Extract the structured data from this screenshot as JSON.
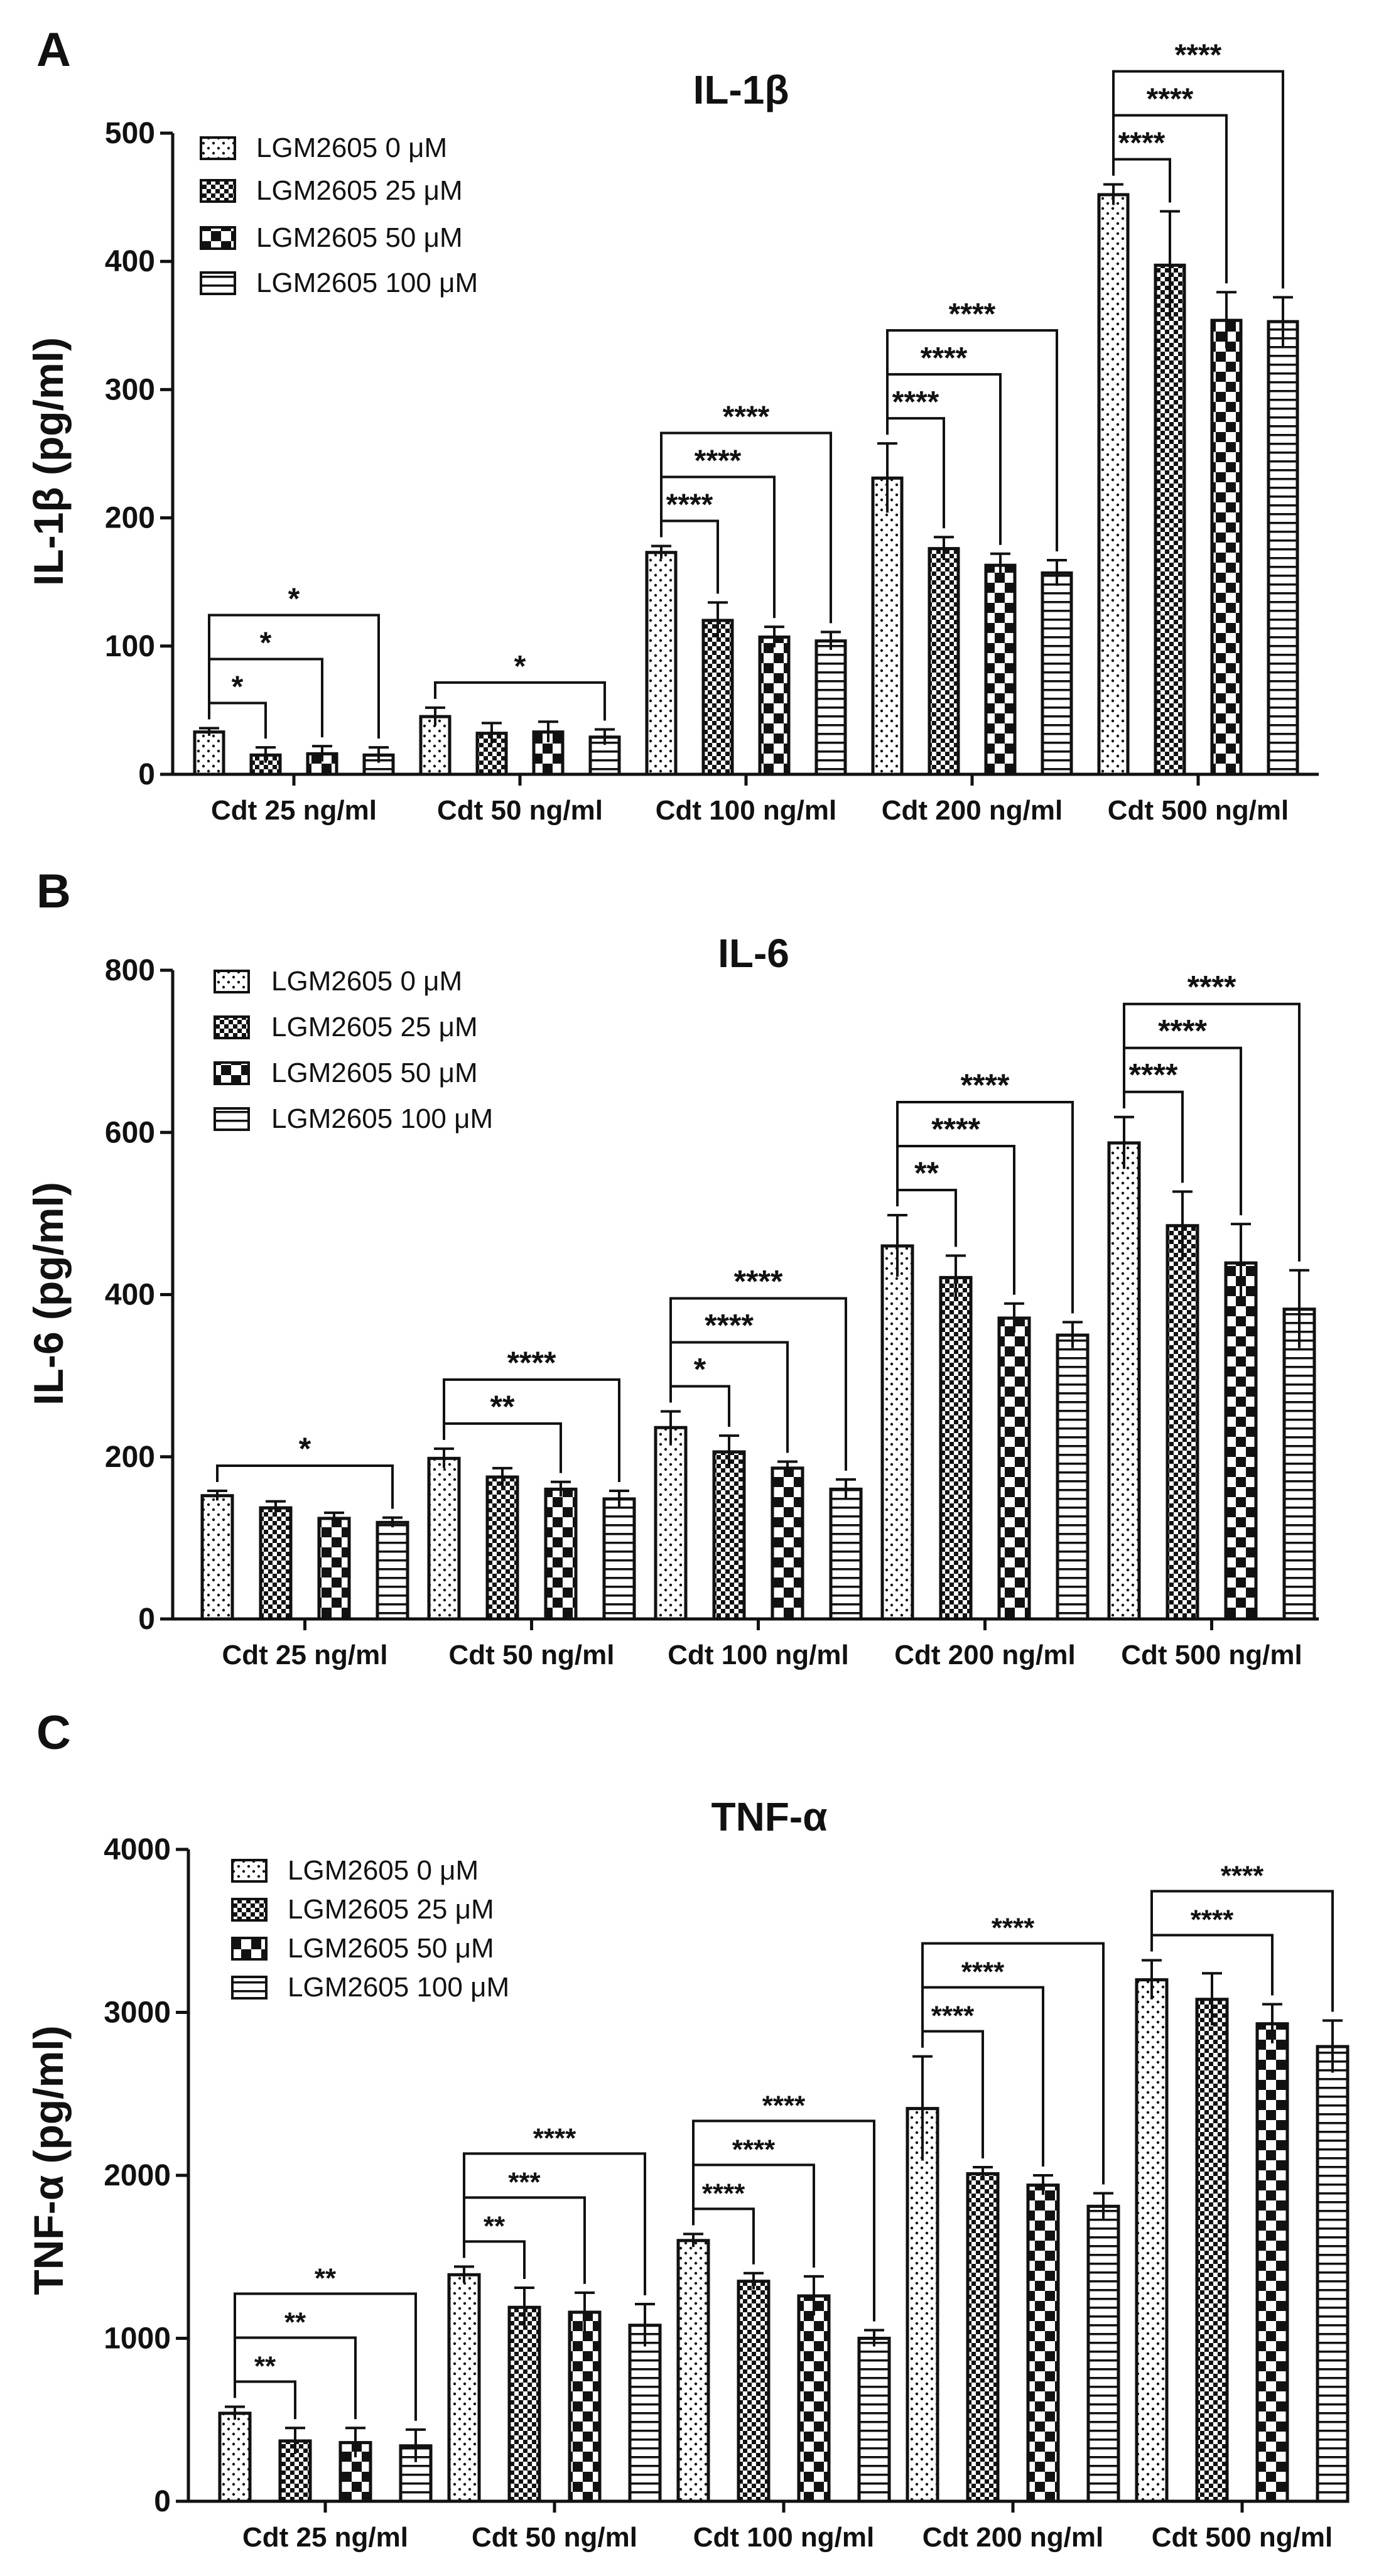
{
  "colors": {
    "ink": "#111111",
    "bar_fill": "#ffffff",
    "background": "#ffffff"
  },
  "legend_patterns": [
    "dots-pattern",
    "checker-pattern",
    "block-checker-pattern",
    "stripes-pattern"
  ],
  "chart_data": [
    {
      "panel": "A",
      "type": "bar",
      "title": "IL-1β",
      "xlabel": "",
      "ylabel": "IL-1β (pg/ml)",
      "ylim": [
        0,
        500
      ],
      "yticks": [
        0,
        100,
        200,
        300,
        400,
        500
      ],
      "grid": false,
      "legend": "top-left",
      "categories": [
        "Cdt 25 ng/ml",
        "Cdt 50 ng/ml",
        "Cdt 100 ng/ml",
        "Cdt 200 ng/ml",
        "Cdt 500 ng/ml"
      ],
      "series": [
        {
          "name": "LGM2605 0 μM",
          "values": [
            33,
            45,
            173,
            231,
            452
          ],
          "errors": [
            3,
            7,
            5,
            27,
            8
          ]
        },
        {
          "name": "LGM2605 25 μM",
          "values": [
            15,
            32,
            120,
            176,
            397
          ],
          "errors": [
            6,
            8,
            14,
            9,
            42
          ]
        },
        {
          "name": "LGM2605 50 μM",
          "values": [
            16,
            33,
            107,
            163,
            354
          ],
          "errors": [
            6,
            8,
            8,
            9,
            22
          ]
        },
        {
          "name": "LGM2605 100 μM",
          "values": [
            15,
            29,
            104,
            157,
            353
          ],
          "errors": [
            6,
            6,
            7,
            10,
            19
          ]
        }
      ],
      "annotations": [
        {
          "group": 0,
          "target": 1,
          "label": "*"
        },
        {
          "group": 0,
          "target": 2,
          "label": "*"
        },
        {
          "group": 0,
          "target": 3,
          "label": "*"
        },
        {
          "group": 1,
          "target": 3,
          "label": "*"
        },
        {
          "group": 2,
          "target": 1,
          "label": "****"
        },
        {
          "group": 2,
          "target": 2,
          "label": "****"
        },
        {
          "group": 2,
          "target": 3,
          "label": "****"
        },
        {
          "group": 3,
          "target": 1,
          "label": "****"
        },
        {
          "group": 3,
          "target": 2,
          "label": "****"
        },
        {
          "group": 3,
          "target": 3,
          "label": "****"
        },
        {
          "group": 4,
          "target": 1,
          "label": "****"
        },
        {
          "group": 4,
          "target": 2,
          "label": "****"
        },
        {
          "group": 4,
          "target": 3,
          "label": "****"
        }
      ]
    },
    {
      "panel": "B",
      "type": "bar",
      "title": "IL-6",
      "xlabel": "",
      "ylabel": "IL-6 (pg/ml)",
      "ylim": [
        0,
        800
      ],
      "yticks": [
        0,
        200,
        400,
        600,
        800
      ],
      "grid": false,
      "legend": "top-left",
      "categories": [
        "Cdt 25 ng/ml",
        "Cdt 50 ng/ml",
        "Cdt 100 ng/ml",
        "Cdt 200 ng/ml",
        "Cdt 500 ng/ml"
      ],
      "series": [
        {
          "name": "LGM2605 0 μM",
          "values": [
            152,
            198,
            236,
            460,
            587
          ],
          "errors": [
            6,
            12,
            20,
            38,
            32
          ]
        },
        {
          "name": "LGM2605 25 μM",
          "values": [
            137,
            175,
            206,
            421,
            485
          ],
          "errors": [
            8,
            11,
            20,
            27,
            42
          ]
        },
        {
          "name": "LGM2605 50 μM",
          "values": [
            124,
            160,
            186,
            371,
            439
          ],
          "errors": [
            7,
            9,
            8,
            18,
            48
          ]
        },
        {
          "name": "LGM2605 100 μM",
          "values": [
            119,
            148,
            160,
            350,
            382
          ],
          "errors": [
            6,
            10,
            12,
            16,
            48
          ]
        }
      ],
      "annotations": [
        {
          "group": 0,
          "target": 3,
          "label": "*"
        },
        {
          "group": 1,
          "target": 2,
          "label": "**"
        },
        {
          "group": 1,
          "target": 3,
          "label": "****"
        },
        {
          "group": 2,
          "target": 1,
          "label": "*"
        },
        {
          "group": 2,
          "target": 2,
          "label": "****"
        },
        {
          "group": 2,
          "target": 3,
          "label": "****"
        },
        {
          "group": 3,
          "target": 1,
          "label": "**"
        },
        {
          "group": 3,
          "target": 2,
          "label": "****"
        },
        {
          "group": 3,
          "target": 3,
          "label": "****"
        },
        {
          "group": 4,
          "target": 1,
          "label": "****"
        },
        {
          "group": 4,
          "target": 2,
          "label": "****"
        },
        {
          "group": 4,
          "target": 3,
          "label": "****"
        }
      ]
    },
    {
      "panel": "C",
      "type": "bar",
      "title": "TNF-α",
      "xlabel": "",
      "ylabel": "TNF-α (pg/ml)",
      "ylim": [
        0,
        4000
      ],
      "yticks": [
        0,
        1000,
        2000,
        3000,
        4000
      ],
      "grid": false,
      "legend": "top-left",
      "categories": [
        "Cdt 25 ng/ml",
        "Cdt 50 ng/ml",
        "Cdt 100 ng/ml",
        "Cdt 200 ng/ml",
        "Cdt 500 ng/ml"
      ],
      "series": [
        {
          "name": "LGM2605 0 μM",
          "values": [
            540,
            1390,
            1600,
            2410,
            3200
          ],
          "errors": [
            40,
            50,
            40,
            320,
            120
          ]
        },
        {
          "name": "LGM2605 25 μM",
          "values": [
            370,
            1190,
            1350,
            2010,
            3080
          ],
          "errors": [
            80,
            120,
            50,
            40,
            160
          ]
        },
        {
          "name": "LGM2605 50 μM",
          "values": [
            360,
            1160,
            1260,
            1940,
            2930
          ],
          "errors": [
            90,
            120,
            120,
            60,
            120
          ]
        },
        {
          "name": "LGM2605 100 μM",
          "values": [
            340,
            1080,
            1000,
            1810,
            2790
          ],
          "errors": [
            100,
            130,
            50,
            80,
            160
          ]
        }
      ],
      "annotations": [
        {
          "group": 0,
          "target": 1,
          "label": "**"
        },
        {
          "group": 0,
          "target": 2,
          "label": "**"
        },
        {
          "group": 0,
          "target": 3,
          "label": "**"
        },
        {
          "group": 1,
          "target": 1,
          "label": "**"
        },
        {
          "group": 1,
          "target": 2,
          "label": "***"
        },
        {
          "group": 1,
          "target": 3,
          "label": "****"
        },
        {
          "group": 2,
          "target": 1,
          "label": "****"
        },
        {
          "group": 2,
          "target": 2,
          "label": "****"
        },
        {
          "group": 2,
          "target": 3,
          "label": "****"
        },
        {
          "group": 3,
          "target": 1,
          "label": "****"
        },
        {
          "group": 3,
          "target": 2,
          "label": "****"
        },
        {
          "group": 3,
          "target": 3,
          "label": "****"
        },
        {
          "group": 4,
          "target": 2,
          "label": "****"
        },
        {
          "group": 4,
          "target": 3,
          "label": "****"
        }
      ]
    }
  ]
}
